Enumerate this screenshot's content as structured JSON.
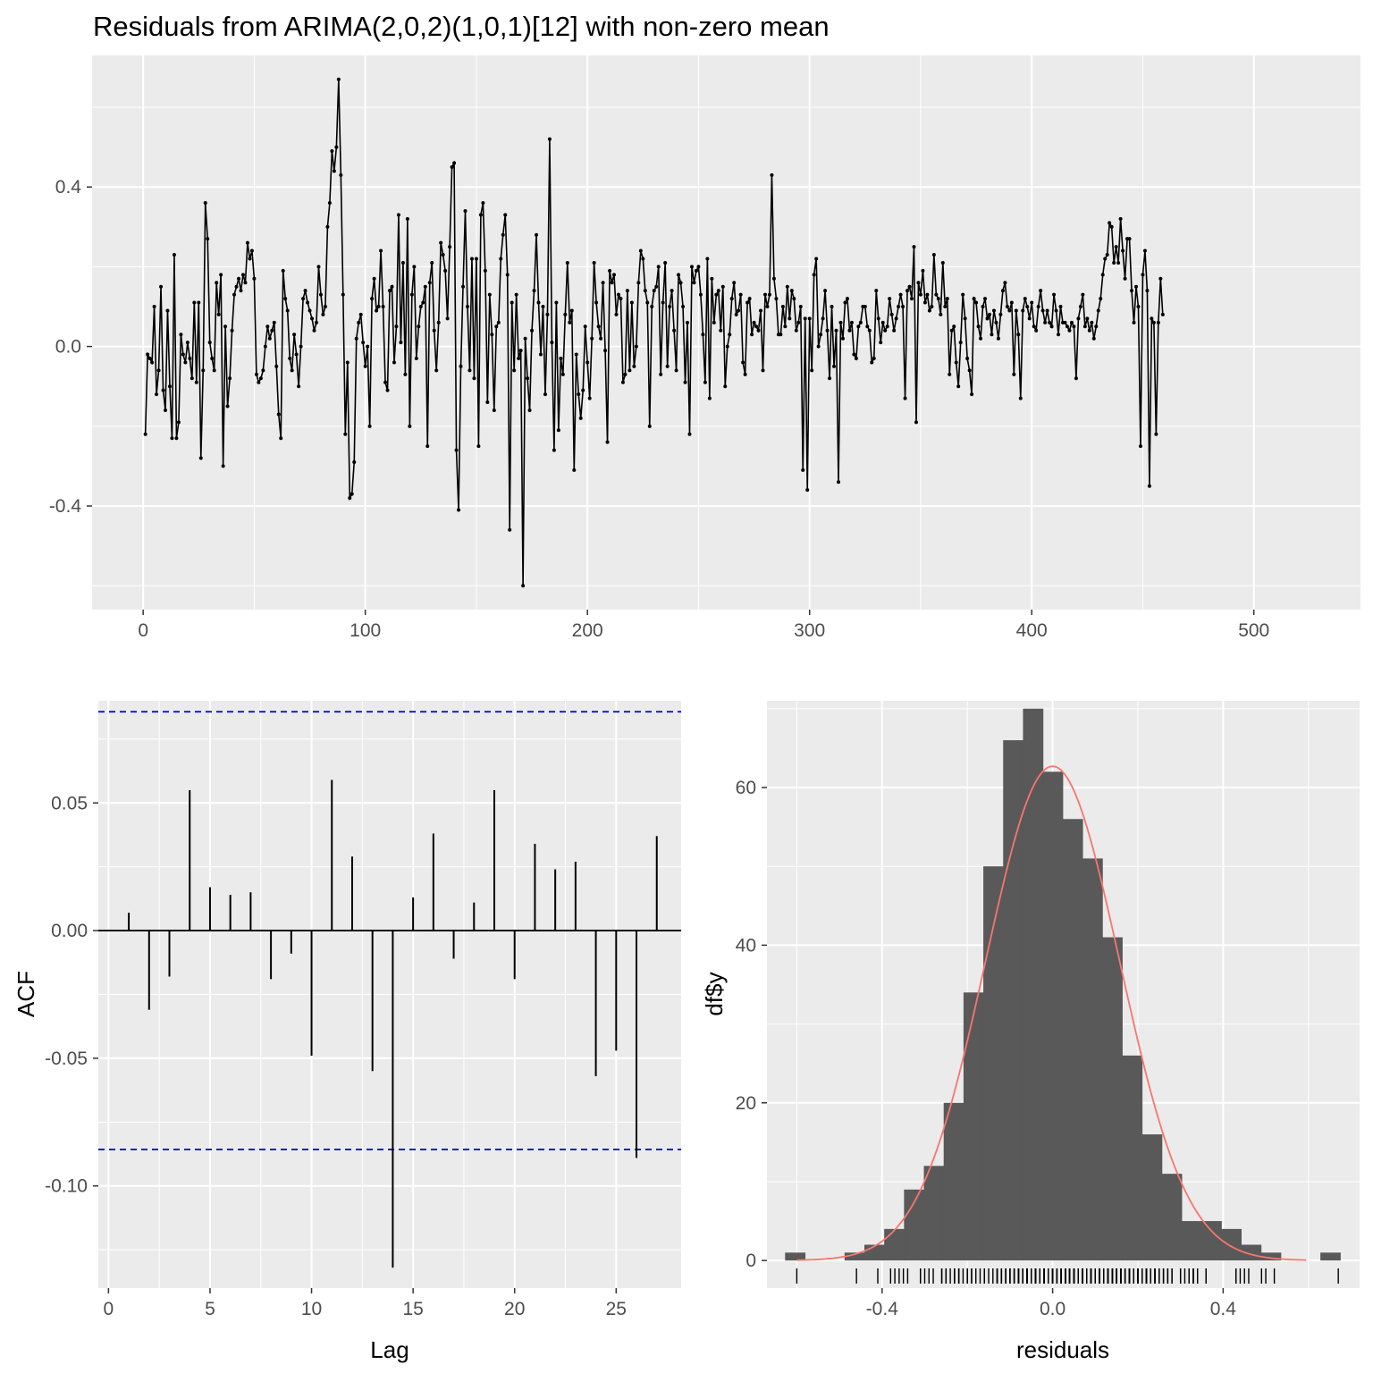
{
  "chart_data": [
    {
      "type": "line",
      "panel": "residual-series",
      "title": "Residuals from ARIMA(2,0,2)(1,0,1)[12] with non-zero mean",
      "xlabel": "",
      "ylabel": "",
      "xlim": [
        -23,
        548
      ],
      "ylim": [
        -0.66,
        0.73
      ],
      "xticks": [
        0,
        100,
        200,
        300,
        400,
        500
      ],
      "yticks": [
        -0.4,
        0.0,
        0.4
      ],
      "ytick_labels": [
        "-0.4",
        "0.0",
        "0.4"
      ],
      "grid": true,
      "x_start": 1,
      "y": [
        -0.22,
        -0.02,
        -0.03,
        -0.04,
        0.1,
        -0.12,
        -0.06,
        0.15,
        -0.11,
        -0.16,
        0.09,
        -0.1,
        -0.23,
        0.23,
        -0.23,
        -0.19,
        0.03,
        -0.02,
        -0.04,
        0.01,
        -0.03,
        -0.08,
        0.11,
        -0.09,
        0.11,
        -0.28,
        -0.06,
        0.36,
        0.27,
        0.01,
        -0.03,
        -0.06,
        0.16,
        0.08,
        0.18,
        -0.3,
        0.05,
        -0.15,
        -0.08,
        0.04,
        0.13,
        0.15,
        0.17,
        0.14,
        0.18,
        0.16,
        0.26,
        0.22,
        0.24,
        0.17,
        -0.07,
        -0.09,
        -0.08,
        -0.06,
        0.0,
        0.05,
        0.02,
        0.04,
        0.06,
        -0.05,
        -0.17,
        -0.23,
        0.19,
        0.12,
        0.09,
        -0.03,
        -0.06,
        0.03,
        -0.02,
        -0.1,
        0.0,
        0.12,
        0.14,
        0.11,
        0.09,
        0.07,
        0.04,
        0.06,
        0.2,
        0.13,
        0.08,
        0.1,
        0.3,
        0.36,
        0.49,
        0.44,
        0.5,
        0.67,
        0.43,
        0.13,
        -0.22,
        -0.04,
        -0.38,
        -0.37,
        -0.29,
        0.02,
        0.06,
        0.08,
        0.01,
        -0.05,
        0.0,
        -0.2,
        0.12,
        0.17,
        0.09,
        0.1,
        0.24,
        0.1,
        -0.09,
        -0.11,
        0.14,
        0.15,
        -0.04,
        0.05,
        0.33,
        0.01,
        0.21,
        -0.07,
        0.32,
        -0.2,
        0.13,
        0.2,
        -0.03,
        0.05,
        0.1,
        0.11,
        0.15,
        -0.25,
        0.16,
        0.21,
        0.04,
        -0.06,
        0.06,
        0.26,
        0.23,
        0.19,
        0.07,
        0.25,
        0.45,
        0.46,
        -0.26,
        -0.41,
        -0.05,
        0.15,
        0.34,
        0.1,
        -0.06,
        0.22,
        -0.08,
        0.22,
        -0.25,
        0.33,
        0.36,
        0.19,
        -0.14,
        0.13,
        0.03,
        -0.16,
        0.05,
        0.06,
        0.22,
        0.28,
        0.33,
        0.18,
        -0.46,
        0.11,
        -0.06,
        0.13,
        -0.03,
        -0.01,
        -0.6,
        0.02,
        -0.08,
        -0.16,
        0.04,
        0.14,
        0.28,
        0.11,
        -0.02,
        0.1,
        -0.12,
        0.08,
        0.52,
        0.01,
        -0.26,
        0.11,
        -0.21,
        -0.03,
        -0.07,
        0.08,
        0.21,
        0.06,
        0.09,
        -0.31,
        -0.02,
        -0.12,
        -0.18,
        -0.11,
        0.05,
        -0.04,
        -0.13,
        0.02,
        0.21,
        0.11,
        0.05,
        0.02,
        0.16,
        -0.01,
        -0.24,
        0.19,
        0.16,
        0.18,
        0.08,
        0.13,
        0.12,
        -0.09,
        -0.07,
        0.14,
        -0.06,
        0.11,
        -0.05,
        0.0,
        0.16,
        0.24,
        0.22,
        0.14,
        0.11,
        -0.2,
        0.1,
        0.14,
        0.15,
        0.2,
        -0.07,
        0.11,
        0.21,
        -0.05,
        0.1,
        0.14,
        0.04,
        -0.06,
        0.18,
        0.16,
        0.1,
        -0.09,
        0.06,
        -0.22,
        0.2,
        0.16,
        0.19,
        0.2,
        0.13,
        0.03,
        -0.09,
        0.22,
        -0.13,
        0.17,
        0.06,
        0.13,
        0.14,
        0.04,
        0.15,
        -0.1,
        0.0,
        0.03,
        0.12,
        0.16,
        0.08,
        0.09,
        0.13,
        -0.04,
        -0.07,
        0.11,
        0.12,
        0.03,
        0.06,
        0.05,
        0.04,
        0.09,
        -0.06,
        0.13,
        0.1,
        0.13,
        0.43,
        0.17,
        0.12,
        0.03,
        0.03,
        0.1,
        0.05,
        0.15,
        0.07,
        0.14,
        0.12,
        0.04,
        0.06,
        0.1,
        -0.31,
        0.07,
        -0.36,
        0.07,
        -0.06,
        0.18,
        0.22,
        0.0,
        0.03,
        0.07,
        0.14,
        0.04,
        -0.08,
        0.1,
        -0.05,
        0.04,
        -0.34,
        0.06,
        0.02,
        0.11,
        0.12,
        0.04,
        0.06,
        -0.02,
        -0.03,
        0.05,
        0.06,
        0.1,
        0.1,
        0.05,
        0.04,
        -0.04,
        -0.03,
        0.14,
        0.07,
        0.01,
        0.06,
        0.04,
        0.05,
        0.12,
        0.08,
        0.04,
        0.07,
        0.1,
        0.13,
        0.1,
        -0.13,
        0.14,
        0.15,
        0.12,
        0.25,
        -0.19,
        0.16,
        0.13,
        0.19,
        0.11,
        0.13,
        0.09,
        0.1,
        0.23,
        0.13,
        0.12,
        0.08,
        0.21,
        0.1,
        0.12,
        -0.07,
        0.04,
        0.05,
        -0.04,
        -0.1,
        0.01,
        0.13,
        0.07,
        -0.03,
        -0.06,
        -0.12,
        0.12,
        0.11,
        0.05,
        0.02,
        0.1,
        0.12,
        0.07,
        0.08,
        0.03,
        0.09,
        0.06,
        0.02,
        0.08,
        0.14,
        0.16,
        0.1,
        0.09,
        0.11,
        -0.07,
        0.09,
        0.03,
        -0.13,
        0.09,
        0.12,
        0.1,
        0.07,
        0.11,
        0.05,
        0.04,
        0.1,
        0.14,
        0.09,
        0.06,
        0.09,
        0.06,
        0.05,
        0.13,
        0.09,
        0.03,
        0.1,
        0.06,
        0.06,
        0.05,
        0.04,
        0.06,
        0.05,
        -0.08,
        0.07,
        0.1,
        0.13,
        0.05,
        0.07,
        0.04,
        0.06,
        0.02,
        0.05,
        0.09,
        0.12,
        0.18,
        0.22,
        0.23,
        0.31,
        0.3,
        0.21,
        0.25,
        0.21,
        0.32,
        0.24,
        0.17,
        0.27,
        0.27,
        0.14,
        0.06,
        0.15,
        0.1,
        -0.25,
        0.18,
        0.24,
        0.14,
        -0.35,
        0.07,
        0.06,
        -0.22,
        0.06,
        0.17,
        0.08
      ]
    },
    {
      "type": "bar",
      "panel": "acf",
      "xlabel": "Lag",
      "ylabel": "ACF",
      "xlim": [
        -0.5,
        28.2
      ],
      "ylim": [
        -0.14,
        0.09
      ],
      "xticks": [
        0,
        5,
        10,
        15,
        20,
        25
      ],
      "yticks": [
        -0.1,
        -0.05,
        0.0,
        0.05
      ],
      "ytick_labels": [
        "-0.10",
        "-0.05",
        "0.00",
        "0.05"
      ],
      "grid": true,
      "lags": [
        1,
        2,
        3,
        4,
        5,
        6,
        7,
        8,
        9,
        10,
        11,
        12,
        13,
        14,
        15,
        16,
        17,
        18,
        19,
        20,
        21,
        22,
        23,
        24,
        25,
        26,
        27
      ],
      "values": [
        0.007,
        -0.031,
        -0.018,
        0.055,
        0.017,
        0.014,
        0.015,
        -0.019,
        -0.009,
        -0.049,
        0.059,
        0.029,
        -0.055,
        -0.132,
        0.013,
        0.038,
        -0.011,
        0.011,
        0.055,
        -0.019,
        0.034,
        0.024,
        0.027,
        -0.057,
        -0.047,
        -0.089,
        0.037
      ],
      "confidence_bounds": [
        -0.0857,
        0.0857
      ]
    },
    {
      "type": "bar",
      "panel": "histogram",
      "xlabel": "residuals",
      "ylabel": "df$y",
      "xlim": [
        -0.67,
        0.72
      ],
      "ylim": [
        -3.5,
        71
      ],
      "xticks": [
        -0.4,
        0.0,
        0.4
      ],
      "xtick_labels": [
        "-0.4",
        "0.0",
        "0.4"
      ],
      "yticks": [
        0,
        20,
        40,
        60
      ],
      "grid": true,
      "bin_width": 0.0465,
      "bin_left_edges": [
        -0.6275,
        -0.581,
        -0.5345,
        -0.488,
        -0.4415,
        -0.395,
        -0.3485,
        -0.302,
        -0.2555,
        -0.209,
        -0.1625,
        -0.116,
        -0.0695,
        -0.023,
        0.0235,
        0.07,
        0.1165,
        0.163,
        0.2095,
        0.256,
        0.3025,
        0.349,
        0.3955,
        0.442,
        0.4885,
        0.535,
        0.5815,
        0.628
      ],
      "counts": [
        1,
        0,
        0,
        1,
        2,
        4,
        9,
        12,
        20,
        34,
        50,
        66,
        70,
        62,
        56,
        51,
        41,
        26,
        16,
        11,
        5,
        5,
        4,
        2,
        1,
        0,
        0,
        1
      ],
      "normal_curve": {
        "mean": 0.0,
        "sd": 0.157,
        "peak": 62.7,
        "color": "#f8766d"
      },
      "rug": "residual values shown as ticks along x-axis"
    }
  ],
  "colors": {
    "panel_bg": "#ebebeb",
    "grid": "#ffffff",
    "line": "#000000",
    "bars": "#595959",
    "ci_lines": "#0000cc",
    "curve": "#f8766d"
  }
}
